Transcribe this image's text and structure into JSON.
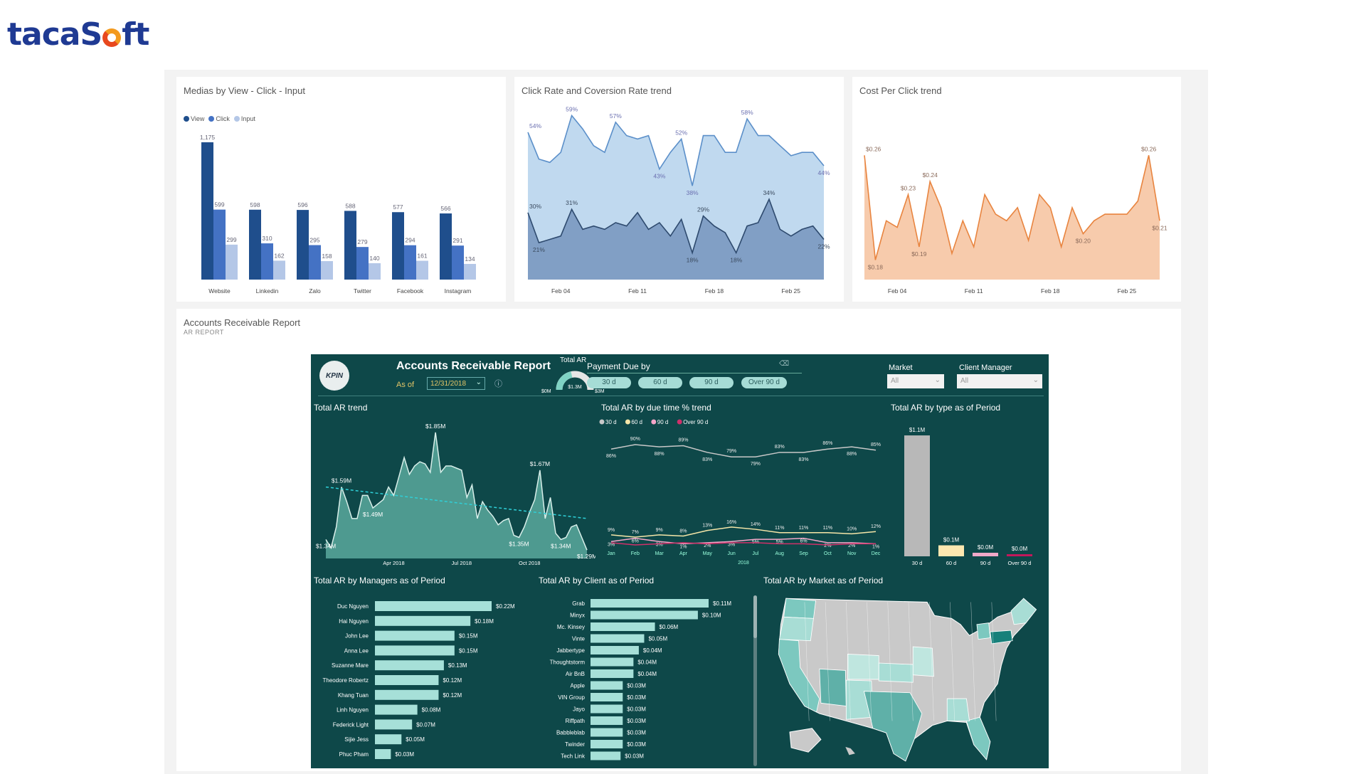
{
  "brand": {
    "name": "tacaSoft",
    "colors": {
      "primary": "#1f3a93",
      "accent": "#e8481e"
    }
  },
  "ar_card": {
    "title": "Accounts Receivable Report",
    "subtitle": "AR REPORT"
  },
  "ar_report": {
    "logo_text": "KPIN",
    "title": "Accounts Receivable Report",
    "as_of_label": "As of",
    "as_of_date": "12/31/2018",
    "gauge": {
      "label": "Total AR",
      "value": 1.3,
      "min": 0,
      "max": 3,
      "value_text": "$1.3M",
      "min_text": "$0M",
      "max_text": "$3M"
    },
    "payment_due": {
      "label": "Payment Due by",
      "options": [
        "30 d",
        "60 d",
        "90 d",
        "Over 90 d"
      ]
    },
    "market": {
      "label": "Market",
      "value": "All"
    },
    "client_manager": {
      "label": "Client Manager",
      "value": "All"
    },
    "map": {
      "title": "Total AR by Market as of Period",
      "region": "United States"
    },
    "colors": {
      "background": "#0e4849",
      "bar": "#a6e0d8",
      "area": "#4e9a90"
    }
  },
  "chart_data": [
    {
      "type": "bar",
      "title": "Medias by View - Click - Input",
      "categories": [
        "Website",
        "Linkedin",
        "Zalo",
        "Twitter",
        "Facebook",
        "Instagram"
      ],
      "series": [
        {
          "name": "View",
          "color": "#1f4e8c",
          "values": [
            1175,
            598,
            596,
            588,
            577,
            566
          ]
        },
        {
          "name": "Click",
          "color": "#4472c4",
          "values": [
            599,
            310,
            295,
            279,
            294,
            291
          ]
        },
        {
          "name": "Input",
          "color": "#b4c7e7",
          "values": [
            299,
            162,
            158,
            140,
            161,
            134
          ]
        }
      ],
      "value_labels": [
        "1,175",
        "599",
        "299",
        "598",
        "310",
        "162",
        "596",
        "295",
        "158",
        "588",
        "279",
        "140",
        "577",
        "294",
        "161",
        "566",
        "291",
        "134"
      ],
      "ylim": [
        0,
        1175
      ],
      "legend": "top-left"
    },
    {
      "type": "area",
      "title": "Click Rate and Coversion Rate trend",
      "x": [
        "Feb 01",
        "Feb 02",
        "Feb 03",
        "Feb 04",
        "Feb 05",
        "Feb 06",
        "Feb 07",
        "Feb 08",
        "Feb 09",
        "Feb 10",
        "Feb 11",
        "Feb 12",
        "Feb 13",
        "Feb 14",
        "Feb 15",
        "Feb 16",
        "Feb 17",
        "Feb 18",
        "Feb 19",
        "Feb 20",
        "Feb 21",
        "Feb 22",
        "Feb 23",
        "Feb 24",
        "Feb 25",
        "Feb 26",
        "Feb 27",
        "Feb 28"
      ],
      "x_ticks": [
        "Feb 04",
        "Feb 11",
        "Feb 18",
        "Feb 25"
      ],
      "series": [
        {
          "fill": "#bdd7ee",
          "stroke": "#5b8fc9",
          "label_color": "#6a6fb0",
          "values": [
            54,
            46,
            45,
            48,
            59,
            55,
            50,
            48,
            57,
            53,
            52,
            53,
            43,
            48,
            52,
            38,
            53,
            53,
            48,
            48,
            58,
            53,
            53,
            50,
            47,
            48,
            48,
            44
          ],
          "labeled_x": [
            "Feb 01",
            "Feb 05",
            "Feb 09",
            "Feb 13",
            "Feb 15",
            "Feb 16",
            "Feb 21",
            "Feb 28"
          ]
        },
        {
          "fill": "#7d9cc2",
          "stroke": "#2e4a6e",
          "label_color": "#3a4a5e",
          "values": [
            30,
            21,
            22,
            23,
            31,
            25,
            26,
            25,
            27,
            26,
            30,
            25,
            27,
            23,
            28,
            18,
            29,
            26,
            24,
            18,
            26,
            27,
            34,
            25,
            23,
            25,
            26,
            22
          ],
          "labeled_x": [
            "Feb 01",
            "Feb 02",
            "Feb 05",
            "Feb 16",
            "Feb 17",
            "Feb 20",
            "Feb 23",
            "Feb 28"
          ]
        }
      ],
      "unit": "%",
      "ylim": [
        10,
        61
      ]
    },
    {
      "type": "area",
      "title": "Cost Per Click trend",
      "x": [
        "Feb 01",
        "Feb 02",
        "Feb 03",
        "Feb 04",
        "Feb 05",
        "Feb 06",
        "Feb 07",
        "Feb 08",
        "Feb 09",
        "Feb 10",
        "Feb 11",
        "Feb 12",
        "Feb 13",
        "Feb 14",
        "Feb 15",
        "Feb 16",
        "Feb 17",
        "Feb 18",
        "Feb 19",
        "Feb 20",
        "Feb 21",
        "Feb 22",
        "Feb 23",
        "Feb 24",
        "Feb 25",
        "Feb 26",
        "Feb 27",
        "Feb 28"
      ],
      "x_ticks": [
        "Feb 04",
        "Feb 11",
        "Feb 18",
        "Feb 25"
      ],
      "series": [
        {
          "fill": "#f7c8a8",
          "stroke": "#e8843f",
          "label_color": "#8a6a5a",
          "values": [
            0.26,
            0.18,
            0.21,
            0.205,
            0.23,
            0.19,
            0.24,
            0.22,
            0.185,
            0.21,
            0.19,
            0.23,
            0.215,
            0.21,
            0.22,
            0.195,
            0.23,
            0.22,
            0.19,
            0.22,
            0.2,
            0.21,
            0.215,
            0.215,
            0.215,
            0.225,
            0.26,
            0.21
          ],
          "labeled_x": [
            "Feb 01",
            "Feb 02",
            "Feb 05",
            "Feb 06",
            "Feb 07",
            "Feb 21",
            "Feb 27",
            "Feb 28"
          ]
        }
      ],
      "unit": "$",
      "ylim": [
        0.165,
        0.32
      ]
    },
    {
      "type": "area",
      "title": "Total AR trend",
      "x_ticks": [
        {
          "label": "Apr 2018",
          "week": 13
        },
        {
          "label": "Jul 2018",
          "week": 26
        },
        {
          "label": "Oct 2018",
          "week": 39
        }
      ],
      "values": [
        1.34,
        1.3,
        1.4,
        1.59,
        1.52,
        1.44,
        1.44,
        1.55,
        1.55,
        1.49,
        1.51,
        1.53,
        1.59,
        1.55,
        1.64,
        1.73,
        1.65,
        1.69,
        1.71,
        1.7,
        1.66,
        1.85,
        1.66,
        1.69,
        1.69,
        1.68,
        1.67,
        1.54,
        1.6,
        1.44,
        1.52,
        1.48,
        1.45,
        1.41,
        1.43,
        1.44,
        1.36,
        1.35,
        1.4,
        1.47,
        1.53,
        1.67,
        1.44,
        1.54,
        1.37,
        1.34,
        1.35,
        1.4,
        1.41,
        1.35,
        1.29
      ],
      "data_labels": [
        {
          "week": 0,
          "text": "$1.34M"
        },
        {
          "week": 3,
          "text": "$1.59M"
        },
        {
          "week": 9,
          "text": "$1.49M"
        },
        {
          "week": 21,
          "text": "$1.85M"
        },
        {
          "week": 41,
          "text": "$1.67M"
        },
        {
          "week": 37,
          "text": "$1.35M"
        },
        {
          "week": 45,
          "text": "$1.34M"
        },
        {
          "week": 50,
          "text": "$1.29M"
        }
      ],
      "trend_line": [
        1.59,
        1.44
      ],
      "ylim": [
        1.25,
        1.9
      ]
    },
    {
      "type": "line",
      "title": "Total AR by due time % trend",
      "categories": [
        "Jan",
        "Feb",
        "Mar",
        "Apr",
        "May",
        "Jun",
        "Jul",
        "Aug",
        "Sep",
        "Oct",
        "Nov",
        "Dec"
      ],
      "xlabel": "2018",
      "series": [
        {
          "name": "30 d",
          "color": "#c8c8c8",
          "values": [
            86,
            90,
            88,
            89,
            83,
            79,
            79,
            83,
            83,
            86,
            88,
            85
          ]
        },
        {
          "name": "60 d",
          "color": "#f5e6a8",
          "values": [
            9,
            7,
            9,
            8,
            13,
            16,
            14,
            11,
            11,
            11,
            10,
            12
          ]
        },
        {
          "name": "90 d",
          "color": "#f4a6c8",
          "values": [
            3,
            6,
            3,
            1,
            2,
            3,
            5,
            5,
            6,
            2,
            2,
            1
          ]
        },
        {
          "name": "Over 90 d",
          "color": "#d0306a",
          "values": [
            2,
            0,
            1,
            2,
            1,
            2,
            2,
            1,
            1,
            0,
            1,
            1
          ]
        }
      ],
      "unit": "%",
      "legend": "top-left",
      "ylim": [
        0,
        90
      ]
    },
    {
      "type": "bar",
      "title": "Total AR by type as of Period",
      "categories": [
        "30 d",
        "60 d",
        "90 d",
        "Over 90 d"
      ],
      "values": [
        1.1,
        0.1,
        0.0,
        0.0
      ],
      "value_labels": [
        "$1.1M",
        "$0.1M",
        "$0.0M",
        "$0.0M"
      ],
      "colors": [
        "#b8b8b8",
        "#fde7b0",
        "#f0a8c8",
        "#c2185b"
      ]
    },
    {
      "type": "bar",
      "orientation": "horizontal",
      "title": "Total AR by Managers as of Period",
      "categories": [
        "Duc Nguyen",
        "Hai Nguyen",
        "John Lee",
        "Anna Lee",
        "Suzanne Mare",
        "Theodore Robertz",
        "Khang Tuan",
        "Linh Nguyen",
        "Federick Light",
        "Sijie Jess",
        "Phuc Pham"
      ],
      "values": [
        0.22,
        0.18,
        0.15,
        0.15,
        0.13,
        0.12,
        0.12,
        0.08,
        0.07,
        0.05,
        0.03
      ],
      "value_labels": [
        "$0.22M",
        "$0.18M",
        "$0.15M",
        "$0.15M",
        "$0.13M",
        "$0.12M",
        "$0.12M",
        "$0.08M",
        "$0.07M",
        "$0.05M",
        "$0.03M"
      ]
    },
    {
      "type": "bar",
      "orientation": "horizontal",
      "title": "Total AR by Client as of Period",
      "categories": [
        "Grab",
        "Minyx",
        "Mc. Kinsey",
        "Vinte",
        "Jabbertype",
        "Thoughtstorm",
        "Air BnB",
        "Apple",
        "VIN Group",
        "Jayo",
        "Riffpath",
        "Babbleblab",
        "Twinder",
        "Tech Link"
      ],
      "values": [
        0.11,
        0.1,
        0.06,
        0.05,
        0.045,
        0.04,
        0.04,
        0.03,
        0.03,
        0.03,
        0.03,
        0.03,
        0.03,
        0.028
      ],
      "value_labels": [
        "$0.11M",
        "$0.10M",
        "$0.06M",
        "$0.05M",
        "$0.04M",
        "$0.04M",
        "$0.04M",
        "$0.03M",
        "$0.03M",
        "$0.03M",
        "$0.03M",
        "$0.03M",
        "$0.03M",
        "$0.03M"
      ]
    }
  ]
}
